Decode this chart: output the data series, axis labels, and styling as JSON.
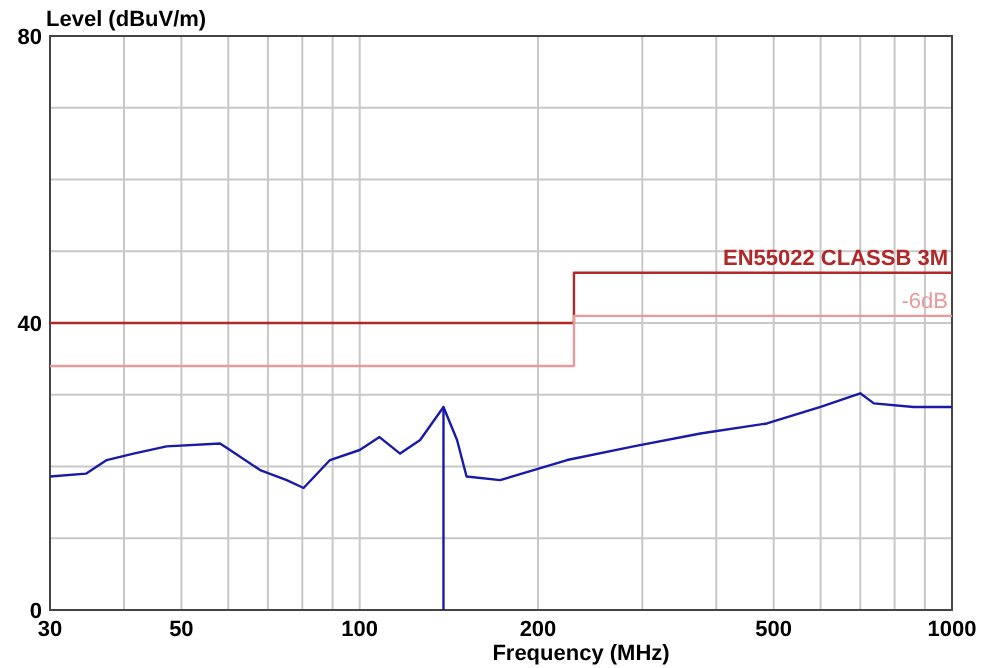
{
  "chart_data": {
    "type": "line",
    "xlabel": "Frequency (MHz)",
    "ylabel": "Level (dBuV/m)",
    "log": "x",
    "grid": true,
    "xlim": [
      30,
      1000
    ],
    "ylim": [
      0,
      80
    ],
    "xticks": [
      30,
      {
        "value": 40,
        "label": null
      },
      50,
      {
        "value": 60,
        "label": null
      },
      {
        "value": 70,
        "label": null
      },
      {
        "value": 80,
        "label": null
      },
      {
        "value": 90,
        "label": null
      },
      100,
      200,
      {
        "value": 300,
        "label": null
      },
      {
        "value": 400,
        "label": null
      },
      500,
      {
        "value": 600,
        "label": null
      },
      {
        "value": 700,
        "label": null
      },
      {
        "value": 800,
        "label": null
      },
      {
        "value": 900,
        "label": null
      },
      1000
    ],
    "yticks": [
      0,
      {
        "value": 10,
        "label": null
      },
      {
        "value": 20,
        "label": null
      },
      {
        "value": 30,
        "label": null
      },
      40,
      {
        "value": 50,
        "label": null
      },
      {
        "value": 60,
        "label": null
      },
      {
        "value": 70,
        "label": null
      },
      80
    ],
    "series": [
      {
        "name": "EN55022 CLASSB 3M",
        "color": "#b02828",
        "x": [
          30,
          230,
          230,
          1000
        ],
        "values": [
          40,
          40,
          47,
          47
        ]
      },
      {
        "name": "-6dB",
        "color": "#e89a9a",
        "x": [
          30,
          230,
          230,
          1000
        ],
        "values": [
          34,
          34,
          41,
          41
        ]
      },
      {
        "color": "#1a1aa8",
        "x": [
          30,
          34.5,
          37.4,
          41.5,
          47.2,
          58.1,
          60.4,
          67.9,
          75.3,
          80.4,
          89.1,
          100,
          108,
          117,
          126.5,
          138.5,
          146,
          151.5,
          172.6,
          224,
          290,
          376,
          487,
          600,
          700,
          738,
          861,
          1000
        ],
        "values": [
          18.6,
          19.0,
          20.9,
          21.8,
          22.8,
          23.2,
          22.3,
          19.5,
          18.1,
          17.0,
          20.9,
          22.3,
          24.1,
          21.8,
          23.7,
          28.3,
          23.7,
          18.6,
          18.1,
          20.9,
          22.8,
          24.6,
          26.0,
          28.3,
          30.2,
          28.8,
          28.3,
          28.3
        ]
      },
      {
        "color": "#1a1aa8",
        "x": [
          138.5,
          138.5
        ],
        "values": [
          0,
          28.3
        ]
      }
    ]
  }
}
